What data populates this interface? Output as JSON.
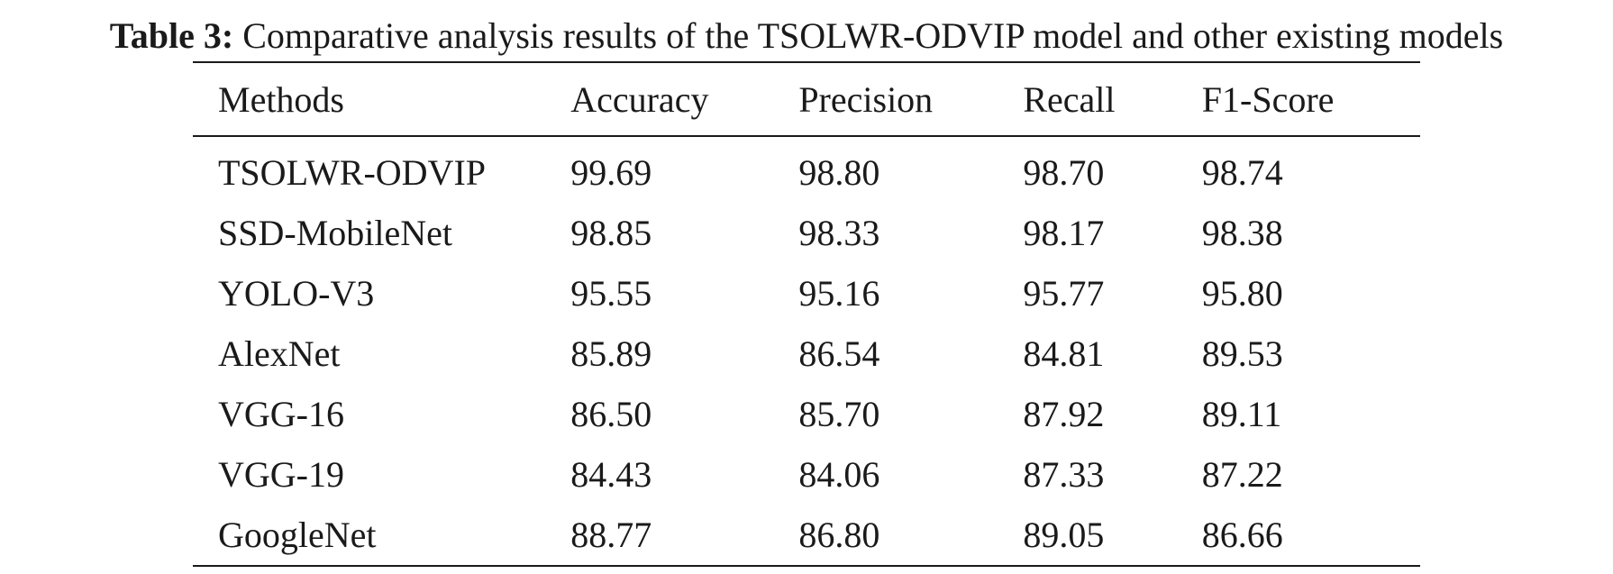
{
  "caption": {
    "label": "Table 3:",
    "text": "Comparative analysis results of the TSOLWR-ODVIP model and other existing models"
  },
  "table": {
    "headers": [
      "Methods",
      "Accuracy",
      "Precision",
      "Recall",
      "F1-Score"
    ],
    "rows": [
      [
        "TSOLWR-ODVIP",
        "99.69",
        "98.80",
        "98.70",
        "98.74"
      ],
      [
        "SSD-MobileNet",
        "98.85",
        "98.33",
        "98.17",
        "98.38"
      ],
      [
        "YOLO-V3",
        "95.55",
        "95.16",
        "95.77",
        "95.80"
      ],
      [
        "AlexNet",
        "85.89",
        "86.54",
        "84.81",
        "89.53"
      ],
      [
        "VGG-16",
        "86.50",
        "85.70",
        "87.92",
        "89.11"
      ],
      [
        "VGG-19",
        "84.43",
        "84.06",
        "87.33",
        "87.22"
      ],
      [
        "GoogleNet",
        "88.77",
        "86.80",
        "89.05",
        "86.66"
      ]
    ]
  }
}
